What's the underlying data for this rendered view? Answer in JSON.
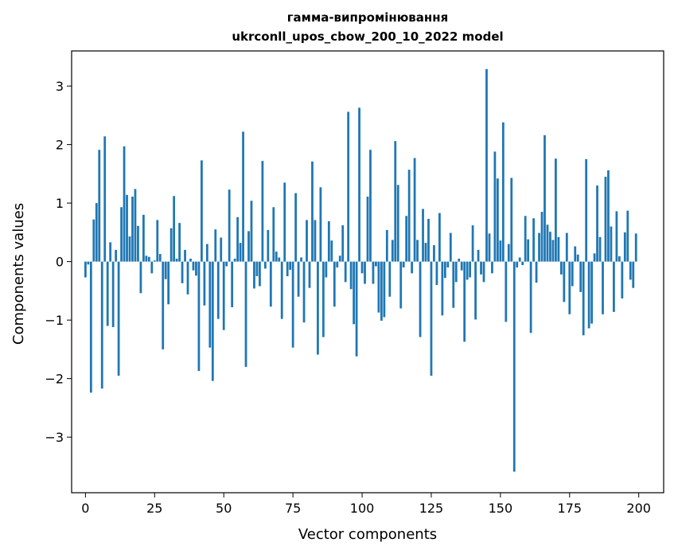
{
  "chart_data": {
    "type": "bar",
    "title": "гамма-випромінювання",
    "subtitle": "ukrconll_upos_cbow_200_10_2022 model",
    "xlabel": "Vector components",
    "ylabel": "Components values",
    "xlim": [
      -5,
      209
    ],
    "ylim": [
      -3.95,
      3.6
    ],
    "xticks": [
      0,
      25,
      50,
      75,
      100,
      125,
      150,
      175,
      200
    ],
    "yticks": [
      -3,
      -2,
      -1,
      0,
      1,
      2,
      3
    ],
    "xtick_labels": [
      "0",
      "25",
      "50",
      "75",
      "100",
      "125",
      "150",
      "175",
      "200"
    ],
    "ytick_labels": [
      "−3",
      "−2",
      "−1",
      "0",
      "1",
      "2",
      "3"
    ],
    "grid": false,
    "bar_color": "#1f77b4",
    "values": [
      -0.27,
      -0.05,
      -2.24,
      0.72,
      1.0,
      1.91,
      -2.17,
      2.14,
      -1.1,
      0.33,
      -1.12,
      0.2,
      -1.95,
      0.93,
      1.97,
      1.14,
      0.43,
      1.11,
      1.24,
      0.61,
      -0.54,
      0.8,
      0.1,
      0.08,
      -0.2,
      0.02,
      0.71,
      0.13,
      -1.5,
      -0.3,
      -0.73,
      0.57,
      1.12,
      0.05,
      0.66,
      -0.37,
      0.2,
      -0.56,
      0.05,
      -0.15,
      -0.24,
      -1.87,
      1.73,
      -0.75,
      0.3,
      -1.47,
      -2.04,
      0.55,
      -0.98,
      0.41,
      -1.17,
      -0.08,
      1.23,
      -0.78,
      0.05,
      0.76,
      0.32,
      2.22,
      -1.8,
      0.52,
      1.04,
      -0.46,
      -0.25,
      -0.42,
      1.72,
      -0.12,
      0.54,
      -0.77,
      0.93,
      0.17,
      0.07,
      -0.98,
      1.35,
      -0.25,
      -0.14,
      -1.47,
      1.17,
      -0.6,
      0.07,
      -1.04,
      0.71,
      -0.45,
      1.71,
      0.71,
      -1.59,
      1.27,
      -1.29,
      -0.27,
      0.69,
      0.36,
      -0.77,
      -0.1,
      0.1,
      0.62,
      -0.35,
      2.56,
      -0.47,
      -1.07,
      -1.62,
      2.63,
      -0.2,
      -0.38,
      1.11,
      1.91,
      -0.38,
      -0.08,
      -0.87,
      -1.01,
      -0.95,
      0.54,
      -0.6,
      0.37,
      2.06,
      1.31,
      -0.8,
      -0.1,
      0.78,
      1.57,
      -0.2,
      1.77,
      0.37,
      -1.29,
      0.9,
      0.32,
      0.73,
      -1.95,
      0.28,
      -0.4,
      0.83,
      -0.92,
      -0.28,
      -0.1,
      0.49,
      -0.79,
      -0.35,
      0.05,
      -0.15,
      -1.37,
      -0.31,
      -0.27,
      0.62,
      -0.99,
      0.2,
      -0.22,
      -0.35,
      3.29,
      0.48,
      -0.2,
      1.88,
      1.42,
      0.36,
      2.38,
      -1.03,
      0.3,
      1.43,
      -3.59,
      -0.1,
      0.07,
      -0.06,
      0.78,
      0.38,
      -1.22,
      0.74,
      -0.36,
      0.49,
      0.85,
      2.16,
      0.63,
      0.51,
      0.37,
      1.76,
      0.42,
      -0.22,
      -0.69,
      0.49,
      -0.9,
      -0.42,
      0.26,
      0.12,
      -0.52,
      -1.26,
      1.75,
      -1.14,
      -1.06,
      0.14,
      1.3,
      0.42,
      -0.9,
      1.45,
      1.56,
      0.6,
      -0.86,
      0.86,
      0.09,
      -0.63,
      0.5,
      0.87,
      -0.31,
      -0.45,
      0.48
    ]
  }
}
